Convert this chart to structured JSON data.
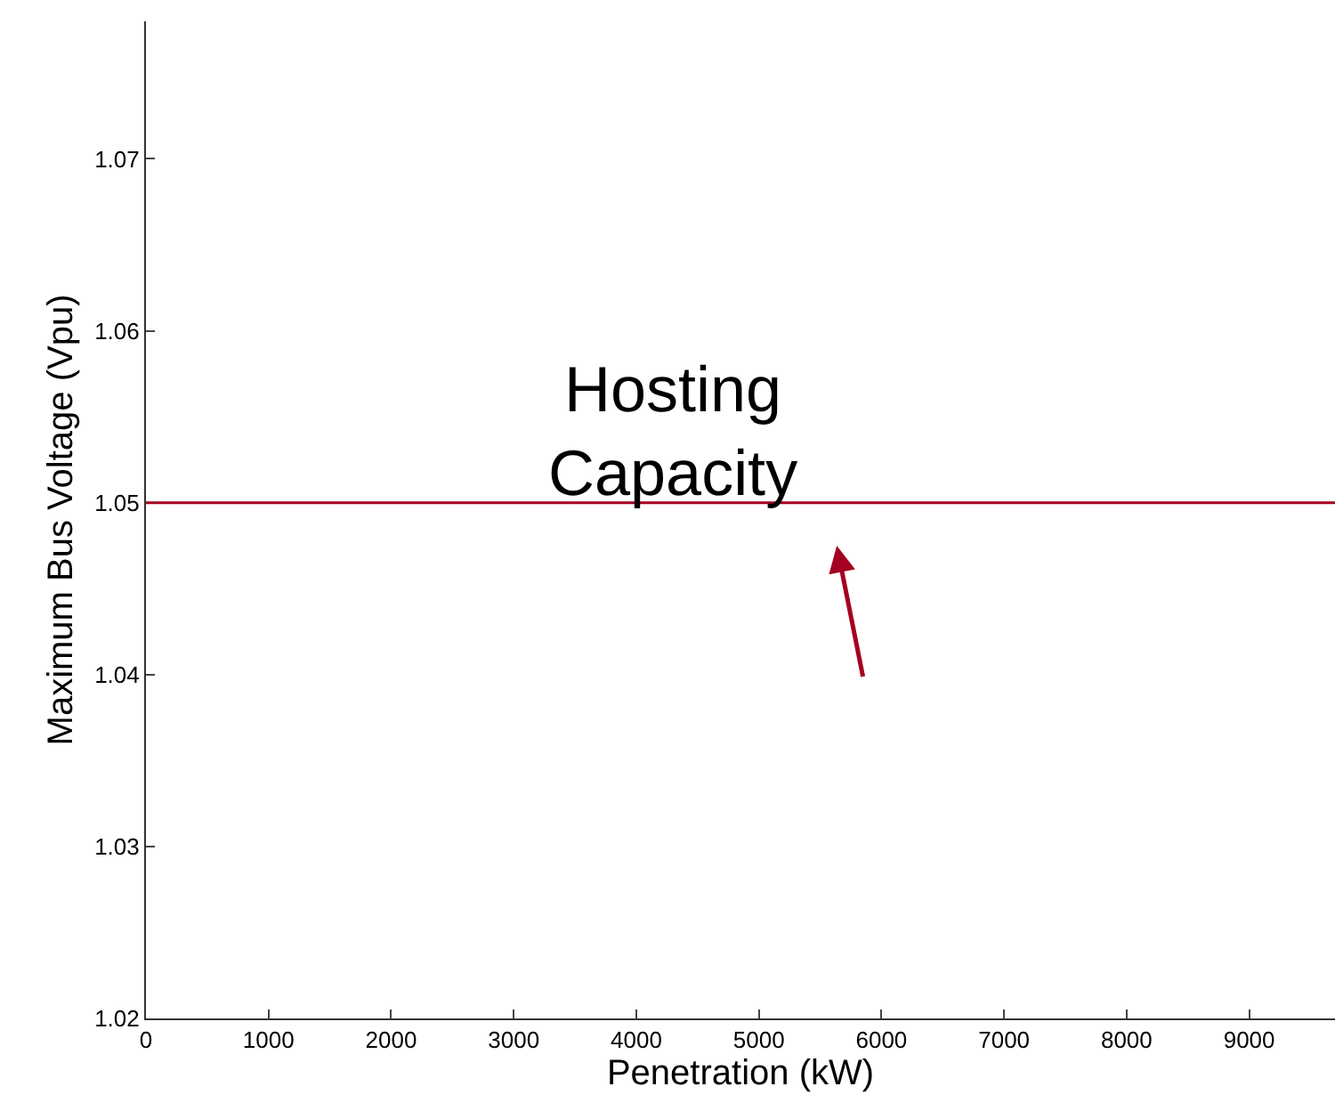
{
  "chart_data": {
    "type": "line",
    "xlabel": "Penetration (kW)",
    "ylabel": "Maximum Bus Voltage (Vpu)",
    "xlim": [
      0,
      9700
    ],
    "ylim": [
      1.02,
      1.078
    ],
    "xticks": [
      0,
      1000,
      2000,
      3000,
      4000,
      5000,
      6000,
      7000,
      8000,
      9000
    ],
    "yticks": [
      1.02,
      1.03,
      1.04,
      1.05,
      1.06,
      1.07
    ],
    "ref_lines": [
      {
        "axis": "y",
        "value": 1.05,
        "label": "Hosting\nCapacity",
        "color": "#a50021"
      }
    ]
  }
}
